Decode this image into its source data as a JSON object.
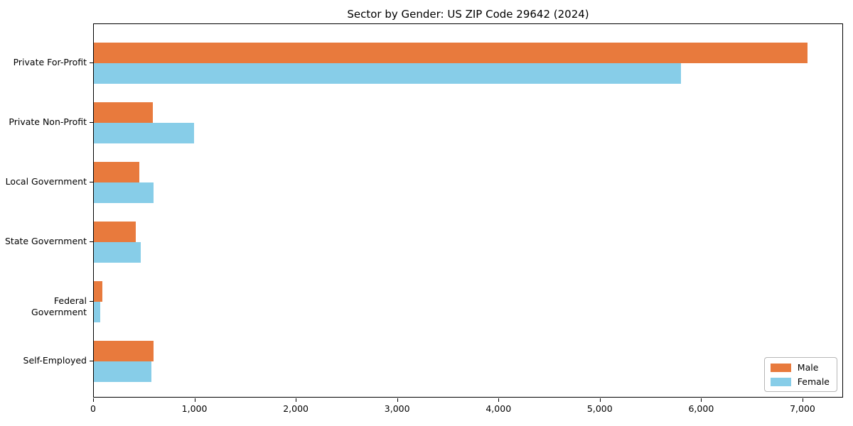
{
  "chart_data": {
    "type": "bar",
    "orientation": "horizontal",
    "title": "Sector by Gender: US ZIP Code 29642 (2024)",
    "categories": [
      "Private For-Profit",
      "Private Non-Profit",
      "Local Government",
      "State Government",
      "Federal Government",
      "Self-Employed"
    ],
    "series": [
      {
        "name": "Male",
        "color": "#e87a3d",
        "values": [
          7040,
          585,
          450,
          410,
          85,
          590
        ]
      },
      {
        "name": "Female",
        "color": "#87cde8",
        "values": [
          5790,
          990,
          590,
          460,
          60,
          570
        ]
      }
    ],
    "xlabel": "",
    "ylabel": "",
    "xlim": [
      0,
      7400
    ],
    "x_ticks": [
      0,
      1000,
      2000,
      3000,
      4000,
      5000,
      6000,
      7000
    ],
    "x_tick_labels": [
      "0",
      "1,000",
      "2,000",
      "3,000",
      "4,000",
      "5,000",
      "6,000",
      "7,000"
    ],
    "legend": {
      "position": "lower right",
      "entries": [
        "Male",
        "Female"
      ]
    },
    "grid": false,
    "background_color": "#ffffff",
    "spine_color": "#000000"
  }
}
